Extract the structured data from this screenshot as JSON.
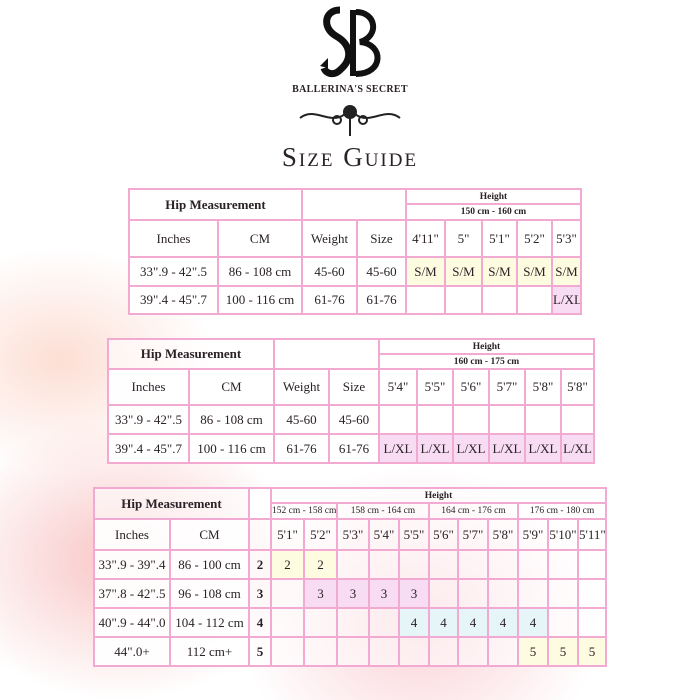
{
  "brand": {
    "monogram": "SB",
    "name": "BALLERINA'S SECRET",
    "title": "Size Guide"
  },
  "colors": {
    "border": "#f2a9d2",
    "sm_fill": "#fdfbe0",
    "lxl_fill": "#f8dcf3",
    "size4_fill": "#e6f6f8"
  },
  "table1": {
    "hip": "Hip Measurement",
    "height": "Height",
    "range": "150 cm - 160 cm",
    "headers": [
      "Inches",
      "CM",
      "Weight",
      "Size",
      "4'11\"",
      "5\"",
      "5'1\"",
      "5'2\"",
      "5'3\""
    ],
    "rows": [
      [
        "33\".9 - 42\".5",
        "86 - 108 cm",
        "45-60",
        "45-60",
        "S/M",
        "S/M",
        "S/M",
        "S/M",
        "S/M"
      ],
      [
        "39\".4 - 45\".7",
        "100 - 116 cm",
        "61-76",
        "61-76",
        "",
        "",
        "",
        "",
        "L/XL"
      ]
    ]
  },
  "table2": {
    "hip": "Hip Measurement",
    "height": "Height",
    "range": "160 cm - 175 cm",
    "headers": [
      "Inches",
      "CM",
      "Weight",
      "Size",
      "5'4\"",
      "5'5\"",
      "5'6\"",
      "5'7\"",
      "5'8\"",
      "5'8\""
    ],
    "rows": [
      [
        "33\".9 - 42\".5",
        "86 - 108 cm",
        "45-60",
        "45-60",
        "",
        "",
        "",
        "",
        "",
        ""
      ],
      [
        "39\".4 - 45\".7",
        "100 - 116 cm",
        "61-76",
        "61-76",
        "L/XL",
        "L/XL",
        "L/XL",
        "L/XL",
        "L/XL",
        "L/XL"
      ]
    ]
  },
  "table3": {
    "hip": "Hip Measurement",
    "height": "Height",
    "ranges": [
      "152 cm - 158 cm",
      "158 cm - 164 cm",
      "164 cm - 176 cm",
      "176 cm - 180 cm"
    ],
    "headers": [
      "Inches",
      "CM",
      "",
      "5'1\"",
      "5'2\"",
      "5'3\"",
      "5'4\"",
      "5'5\"",
      "5'6\"",
      "5'7\"",
      "5'8\"",
      "5'9\"",
      "5'10\"",
      "5'11\""
    ],
    "rows": [
      [
        "33\".9 - 39\".4",
        "86 - 100 cm",
        "2",
        "2",
        "2",
        "",
        "",
        "",
        "",
        "",
        "",
        "",
        "",
        ""
      ],
      [
        "37\".8 - 42\".5",
        "96 - 108 cm",
        "3",
        "",
        "3",
        "3",
        "3",
        "3",
        "",
        "",
        "",
        "",
        "",
        ""
      ],
      [
        "40\".9 - 44\".0",
        "104 - 112 cm",
        "4",
        "",
        "",
        "",
        "",
        "4",
        "4",
        "4",
        "4",
        "4",
        "",
        ""
      ],
      [
        "44\".0+",
        "112 cm+",
        "5",
        "",
        "",
        "",
        "",
        "",
        "",
        "",
        "",
        "5",
        "5",
        "5"
      ]
    ]
  }
}
